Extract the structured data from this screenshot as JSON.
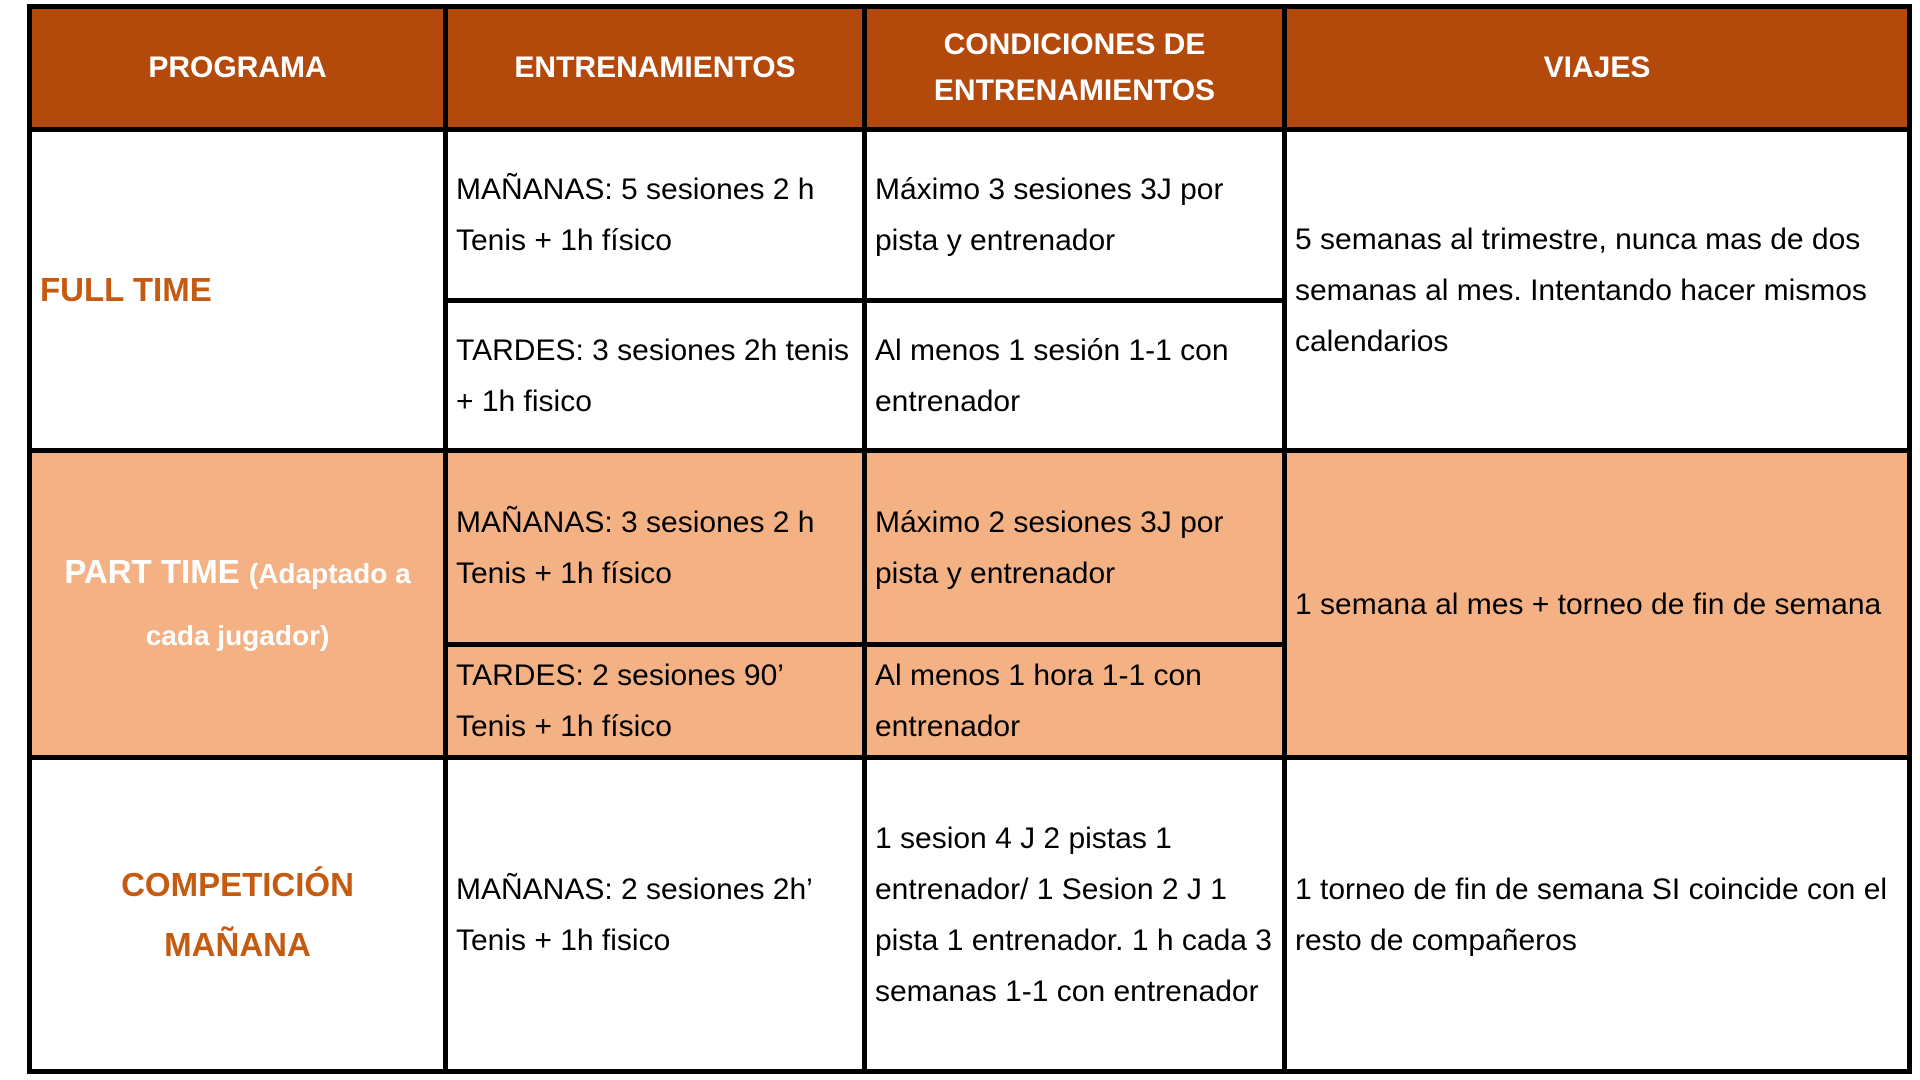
{
  "colors": {
    "header_bg": "#B34A0C",
    "highlight_row": "#F4B183",
    "program_text": "#C55A11"
  },
  "headers": [
    "PROGRAMA",
    "ENTRENAMIENTOS",
    "CONDICIONES DE ENTRENAMIENTOS",
    "VIAJES"
  ],
  "rows": [
    {
      "programa": "FULL TIME",
      "entrenamientos": [
        "MAÑANAS: 5 sesiones 2 h Tenis + 1h físico",
        "TARDES: 3 sesiones 2h tenis + 1h fisico"
      ],
      "condiciones": [
        "Máximo 3 sesiones 3J por pista y entrenador",
        "Al menos 1 sesión 1-1 con entrenador"
      ],
      "viajes": "5 semanas al trimestre, nunca mas de dos semanas al mes. Intentando hacer mismos calendarios"
    },
    {
      "programa": "PART TIME",
      "programa_note": "(Adaptado a cada jugador)",
      "entrenamientos": [
        "MAÑANAS: 3 sesiones 2 h Tenis + 1h físico",
        "TARDES: 2 sesiones 90’ Tenis + 1h físico"
      ],
      "condiciones": [
        "Máximo 2 sesiones 3J por pista y entrenador",
        "Al menos 1 hora 1-1 con entrenador"
      ],
      "viajes": "1 semana al mes + torneo de fin de semana"
    },
    {
      "programa": "COMPETICIÓN MAÑANA",
      "entrenamientos": [
        "MAÑANAS: 2 sesiones 2h’ Tenis + 1h fisico"
      ],
      "condiciones": [
        "1 sesion 4 J 2 pistas 1 entrenador/ 1 Sesion 2 J 1 pista 1 entrenador. 1 h cada 3 semanas 1-1 con entrenador"
      ],
      "viajes": "1 torneo de fin de semana  SI coincide con el resto de compañeros"
    }
  ]
}
